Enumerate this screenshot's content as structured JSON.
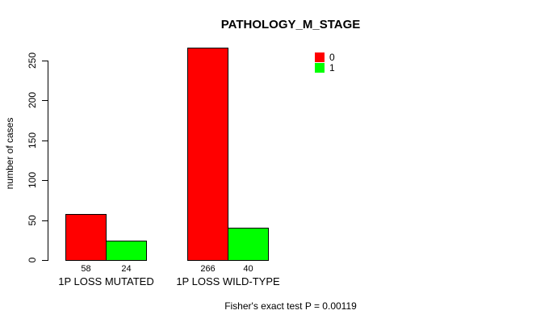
{
  "chart_data": {
    "type": "bar",
    "title": "PATHOLOGY_M_STAGE",
    "categories": [
      "1P LOSS MUTATED",
      "1P LOSS WILD-TYPE"
    ],
    "series": [
      {
        "name": "0",
        "color": "#FF0000",
        "values": [
          58,
          266
        ]
      },
      {
        "name": "1",
        "color": "#00FF00",
        "values": [
          24,
          40
        ]
      }
    ],
    "bar_value_labels": [
      [
        "58",
        "266"
      ],
      [
        "24",
        "40"
      ]
    ],
    "xlabel": "",
    "ylabel": "number of cases",
    "ylim": [
      0,
      266
    ],
    "yticks": [
      0,
      50,
      100,
      150,
      200,
      250
    ],
    "grid": false,
    "legend_position": "top-right",
    "annotation": "Fisher's exact test P = 0.00119",
    "colors": {
      "background": "#FFFFFF",
      "foreground": "#000000",
      "series_0": "#FF0000",
      "series_1": "#00FF00"
    }
  }
}
